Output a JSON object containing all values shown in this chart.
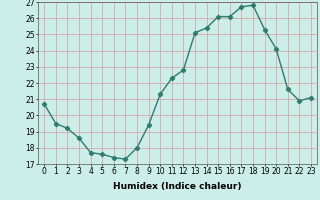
{
  "x": [
    0,
    1,
    2,
    3,
    4,
    5,
    6,
    7,
    8,
    9,
    10,
    11,
    12,
    13,
    14,
    15,
    16,
    17,
    18,
    19,
    20,
    21,
    22,
    23
  ],
  "y": [
    20.7,
    19.5,
    19.2,
    18.6,
    17.7,
    17.6,
    17.4,
    17.3,
    18.0,
    19.4,
    21.3,
    22.3,
    22.8,
    25.1,
    25.4,
    26.1,
    26.1,
    26.7,
    26.8,
    25.3,
    24.1,
    21.6,
    20.9,
    21.1
  ],
  "line_color": "#2e7d6e",
  "marker": "D",
  "markersize": 2.2,
  "linewidth": 1.0,
  "bg_color": "#cceee8",
  "grid_color": "#dd9999",
  "xlabel": "Humidex (Indice chaleur)",
  "ylim": [
    17,
    27
  ],
  "xlim": [
    -0.5,
    23.5
  ],
  "yticks": [
    17,
    18,
    19,
    20,
    21,
    22,
    23,
    24,
    25,
    26,
    27
  ],
  "xticks": [
    0,
    1,
    2,
    3,
    4,
    5,
    6,
    7,
    8,
    9,
    10,
    11,
    12,
    13,
    14,
    15,
    16,
    17,
    18,
    19,
    20,
    21,
    22,
    23
  ],
  "xlabel_fontsize": 6.5,
  "tick_fontsize": 5.5
}
